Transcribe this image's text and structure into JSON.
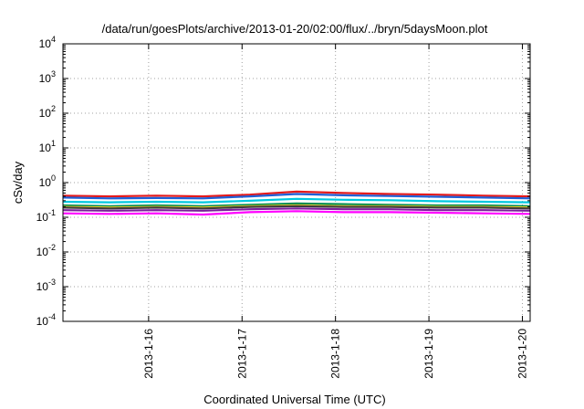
{
  "chart_data": {
    "type": "line",
    "title": "/data/run/goesPlots/archive/2013-01-20/02:00/flux/../bryn/5daysMoon.plot",
    "xlabel": "Coordinated Universal Time (UTC)",
    "ylabel": "cSv/day",
    "yscale": "log",
    "ylim": [
      0.0001,
      10000
    ],
    "xlim": [
      "2013-01-15T02:00",
      "2013-01-20T02:00"
    ],
    "grid": true,
    "legend": "none",
    "y_ticks": [
      {
        "value": 0.0001,
        "base": "10",
        "exp": "-4"
      },
      {
        "value": 0.001,
        "base": "10",
        "exp": "-3"
      },
      {
        "value": 0.01,
        "base": "10",
        "exp": "-2"
      },
      {
        "value": 0.1,
        "base": "10",
        "exp": "-1"
      },
      {
        "value": 1,
        "base": "10",
        "exp": "0"
      },
      {
        "value": 10,
        "base": "10",
        "exp": "1"
      },
      {
        "value": 100,
        "base": "10",
        "exp": "2"
      },
      {
        "value": 1000,
        "base": "10",
        "exp": "3"
      },
      {
        "value": 10000,
        "base": "10",
        "exp": "4"
      }
    ],
    "x_ticks": [
      {
        "value": "2013-01-16T00:00",
        "label": "2013-1-16"
      },
      {
        "value": "2013-01-17T00:00",
        "label": "2013-1-17"
      },
      {
        "value": "2013-01-18T00:00",
        "label": "2013-1-18"
      },
      {
        "value": "2013-01-19T00:00",
        "label": "2013-1-19"
      },
      {
        "value": "2013-01-20T00:00",
        "label": "2013-1-20"
      }
    ],
    "x": [
      "2013-01-15T02:00",
      "2013-01-15T14:00",
      "2013-01-16T02:00",
      "2013-01-16T14:00",
      "2013-01-17T02:00",
      "2013-01-17T14:00",
      "2013-01-18T02:00",
      "2013-01-18T14:00",
      "2013-01-19T02:00",
      "2013-01-19T14:00",
      "2013-01-20T02:00"
    ],
    "series": [
      {
        "color": "#e41a1c",
        "values": [
          0.42,
          0.4,
          0.42,
          0.4,
          0.45,
          0.55,
          0.5,
          0.47,
          0.45,
          0.42,
          0.4
        ]
      },
      {
        "color": "#1f5fd6",
        "values": [
          0.37,
          0.35,
          0.36,
          0.35,
          0.4,
          0.47,
          0.43,
          0.41,
          0.39,
          0.37,
          0.35
        ]
      },
      {
        "color": "#00c8e0",
        "values": [
          0.28,
          0.27,
          0.28,
          0.27,
          0.3,
          0.34,
          0.32,
          0.31,
          0.29,
          0.28,
          0.27
        ]
      },
      {
        "color": "#008c50",
        "values": [
          0.22,
          0.21,
          0.22,
          0.21,
          0.23,
          0.25,
          0.24,
          0.23,
          0.22,
          0.22,
          0.21
        ]
      },
      {
        "color": "#ffd21e",
        "values": [
          0.2,
          0.19,
          0.2,
          0.19,
          0.21,
          0.22,
          0.21,
          0.21,
          0.2,
          0.2,
          0.19
        ]
      },
      {
        "color": "#3c3c3c",
        "values": [
          0.19,
          0.18,
          0.19,
          0.18,
          0.2,
          0.21,
          0.2,
          0.2,
          0.19,
          0.19,
          0.18
        ]
      },
      {
        "color": "#7a1f9a",
        "values": [
          0.16,
          0.155,
          0.16,
          0.155,
          0.17,
          0.18,
          0.17,
          0.17,
          0.16,
          0.16,
          0.155
        ]
      },
      {
        "color": "#ff00ff",
        "values": [
          0.13,
          0.125,
          0.13,
          0.12,
          0.14,
          0.15,
          0.14,
          0.14,
          0.135,
          0.13,
          0.125
        ]
      }
    ]
  }
}
